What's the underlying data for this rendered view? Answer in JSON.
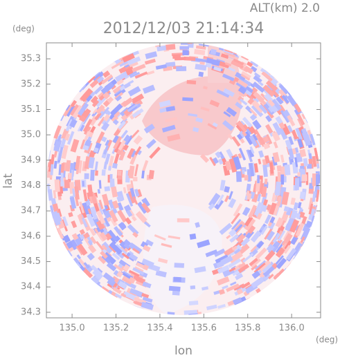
{
  "chart_data": {
    "type": "heatmap",
    "title": "2012/12/03 21:14:34",
    "subtitle": "ALT(km) 2.0",
    "x_label": "lon",
    "y_label": "lat",
    "x_unit": "(deg)",
    "y_unit": "(deg)",
    "xlim": [
      134.883,
      136.132
    ],
    "ylim": [
      34.278,
      35.363
    ],
    "xticks": [
      {
        "value": 135.0,
        "label": "135.0"
      },
      135.2,
      135.4,
      135.6,
      135.8,
      {
        "value": 136.0,
        "label": "136.0"
      }
    ],
    "yticks": [
      34.3,
      34.4,
      34.5,
      34.6,
      34.7,
      34.8,
      34.9,
      {
        "value": 35.0,
        "label": "35.0"
      },
      35.1,
      35.2,
      35.3
    ]
  }
}
